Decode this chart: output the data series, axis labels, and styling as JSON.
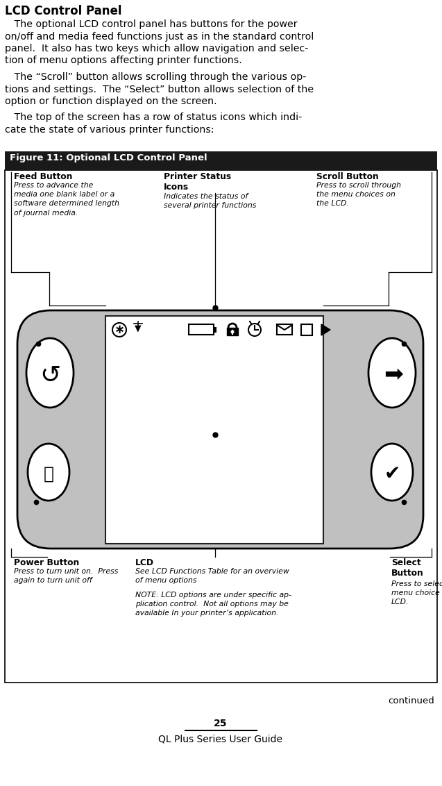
{
  "title": "LCD Control Panel",
  "para1_line1": "   The optional LCD control panel has buttons for the power",
  "para1_line2": "on/off and media feed functions just as in the standard control",
  "para1_line3": "panel.  It also has two keys which allow navigation and selec-",
  "para1_line4": "tion of menu options affecting printer functions.",
  "para2_line1": "   The “Scroll” button allows scrolling through the various op-",
  "para2_line2": "tions and settings.  The “Select” button allows selection of the",
  "para2_line3": "option or function displayed on the screen.",
  "para3_line1": "   The top of the screen has a row of status icons which indi-",
  "para3_line2": "cate the state of various printer functions:",
  "figure_title": "Figure 11: Optional LCD Control Panel",
  "feed_button_label": "Feed Button",
  "feed_button_desc": "Press to advance the\nmedia one blank label or a\nsoftware determined length\nof journal media.",
  "printer_status_label": "Printer Status\nIcons",
  "printer_status_desc": "Indicates the status of\nseveral printer functions",
  "scroll_button_label": "Scroll Button",
  "scroll_button_desc": "Press to scroll through\nthe menu choices on\nthe LCD.",
  "power_button_label": "Power Button",
  "power_button_desc": "Press to turn unit on.  Press\nagain to turn unit off",
  "lcd_label": "LCD",
  "lcd_desc": "See LCD Functions Table for an overview\nof menu options",
  "lcd_note": "NOTE: LCD options are under specific ap-\nplication control.  Not all options may be\navailable In your printer’s application.",
  "select_button_label": "Select\nButton",
  "select_button_desc": "Press to select a\nmenu choice on the\nLCD.",
  "footer_continued": "continued",
  "footer_page": "25",
  "footer_guide": "QL Plus Series User Guide",
  "bg_color": "#ffffff",
  "figure_title_bg": "#1a1a1a",
  "figure_title_color": "#ffffff",
  "device_color": "#c0c0c0",
  "lcd_color": "#ffffff"
}
